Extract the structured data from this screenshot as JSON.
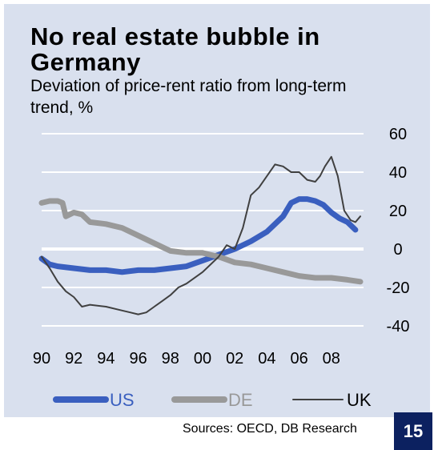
{
  "title": "No real estate bubble in Germany",
  "subtitle": "Deviation of price-rent ratio from long-term trend, %",
  "source": "Sources: OECD, DB Research",
  "page_number": "15",
  "chart_data": {
    "type": "line",
    "title": "No real estate bubble in Germany",
    "subtitle": "Deviation of price-rent ratio from long-term trend, %",
    "xlabel": "",
    "ylabel": "",
    "xlim": [
      1990,
      2010
    ],
    "ylim": [
      -40,
      60
    ],
    "x_ticks": [
      {
        "value": 1990,
        "label": "90"
      },
      {
        "value": 1992,
        "label": "92"
      },
      {
        "value": 1994,
        "label": "94"
      },
      {
        "value": 1996,
        "label": "96"
      },
      {
        "value": 1998,
        "label": "98"
      },
      {
        "value": 2000,
        "label": "00"
      },
      {
        "value": 2002,
        "label": "02"
      },
      {
        "value": 2004,
        "label": "04"
      },
      {
        "value": 2006,
        "label": "06"
      },
      {
        "value": 2008,
        "label": "08"
      }
    ],
    "y_ticks": [
      {
        "value": 60,
        "label": "60"
      },
      {
        "value": 40,
        "label": "40"
      },
      {
        "value": 20,
        "label": "20"
      },
      {
        "value": 0,
        "label": "0"
      },
      {
        "value": -20,
        "label": "-20"
      },
      {
        "value": -40,
        "label": "-40"
      }
    ],
    "grid": true,
    "y_axis_side": "right",
    "legend_position": "bottom",
    "series": [
      {
        "name": "US",
        "color": "#3a5fbf",
        "style": "thick",
        "x": [
          1990,
          1990.5,
          1991,
          1992,
          1993,
          1994,
          1995,
          1996,
          1997,
          1998,
          1999,
          2000,
          2001,
          2002,
          2003,
          2004,
          2005,
          2005.5,
          2006,
          2006.5,
          2007,
          2007.5,
          2008,
          2008.5,
          2009,
          2009.5
        ],
        "y": [
          -5,
          -8,
          -9,
          -10,
          -11,
          -11,
          -12,
          -11,
          -11,
          -10,
          -9,
          -6,
          -3,
          0,
          4,
          9,
          17,
          24,
          26,
          26,
          25,
          23,
          19,
          16,
          14,
          10
        ]
      },
      {
        "name": "DE",
        "color": "#999999",
        "style": "thick",
        "x": [
          1990,
          1990.5,
          1991,
          1991.3,
          1991.5,
          1992,
          1992.5,
          1993,
          1994,
          1995,
          1996,
          1997,
          1998,
          1999,
          2000,
          2001,
          2002,
          2003,
          2004,
          2005,
          2006,
          2007,
          2008,
          2009,
          2009.8
        ],
        "y": [
          24,
          25,
          25,
          24,
          17,
          19,
          18,
          14,
          13,
          11,
          7,
          3,
          -1,
          -2,
          -2,
          -4,
          -7,
          -8,
          -10,
          -12,
          -14,
          -15,
          -15,
          -16,
          -17
        ]
      },
      {
        "name": "UK",
        "color": "#404040",
        "style": "thin",
        "x": [
          1990,
          1990.5,
          1991,
          1991.5,
          1992,
          1992.5,
          1993,
          1994,
          1995,
          1995.5,
          1996,
          1996.5,
          1997,
          1997.5,
          1998,
          1998.5,
          1999,
          2000,
          2001,
          2001.5,
          2002,
          2002.5,
          2003,
          2003.5,
          2004,
          2004.5,
          2005,
          2005.5,
          2006,
          2006.5,
          2007,
          2007.3,
          2007.6,
          2008,
          2008.4,
          2008.8,
          2009.2,
          2009.5,
          2009.8
        ],
        "y": [
          -4,
          -10,
          -17,
          -22,
          -25,
          -30,
          -29,
          -30,
          -32,
          -33,
          -34,
          -33,
          -30,
          -27,
          -24,
          -20,
          -18,
          -12,
          -4,
          2,
          0,
          11,
          28,
          32,
          38,
          44,
          43,
          40,
          40,
          36,
          35,
          38,
          43,
          48,
          38,
          20,
          15,
          14,
          17
        ]
      }
    ]
  }
}
